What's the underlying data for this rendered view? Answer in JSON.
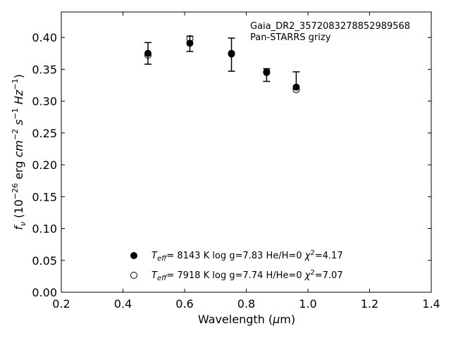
{
  "chart_data": {
    "type": "scatter",
    "xlabel": "Wavelength (μm)",
    "xlabel_parts": {
      "pre": "Wavelength (",
      "mu": "μ",
      "post": "m)"
    },
    "ylabel": "f_ν (10^-26 erg cm^-2 s^-1 Hz^-1)",
    "xlim": [
      0.2,
      1.4
    ],
    "ylim": [
      0.0,
      0.44
    ],
    "xticks": [
      0.2,
      0.4,
      0.6,
      0.8,
      1.0,
      1.2,
      1.4
    ],
    "xtick_labels": [
      "0.2",
      "0.4",
      "0.6",
      "0.8",
      "1.0",
      "1.2",
      "1.4"
    ],
    "yticks": [
      0.0,
      0.05,
      0.1,
      0.15,
      0.2,
      0.25,
      0.3,
      0.35,
      0.4
    ],
    "ytick_labels": [
      "0.00",
      "0.05",
      "0.10",
      "0.15",
      "0.20",
      "0.25",
      "0.30",
      "0.35",
      "0.40"
    ],
    "grid": false,
    "annotations": [
      "Gaia_DR2_3572083278852989568",
      "Pan-STARRS grizy"
    ],
    "observed": {
      "x": [
        0.481,
        0.617,
        0.752,
        0.866,
        0.962
      ],
      "y": [
        0.375,
        0.39,
        0.373,
        0.341,
        0.333
      ],
      "yerr": [
        0.017,
        0.012,
        0.026,
        0.01,
        0.013
      ],
      "marker": "errorbar-cap"
    },
    "series": [
      {
        "label_parts": {
          "teff": "8143 K",
          "logg": "log g=7.83",
          "comp": "He/H=0",
          "chi2": "=4.17"
        },
        "marker": "filled-circle",
        "x": [
          0.481,
          0.617,
          0.752,
          0.866,
          0.962
        ],
        "y": [
          0.375,
          0.391,
          0.374,
          0.345,
          0.322
        ]
      },
      {
        "label_parts": {
          "teff": "7918 K",
          "logg": "log g=7.74",
          "comp": "H/He=0",
          "chi2": "=7.07"
        },
        "marker": "open-circle",
        "x": [
          0.481,
          0.617,
          0.752,
          0.866,
          0.962
        ],
        "y": [
          0.372,
          0.398,
          0.375,
          0.346,
          0.318
        ]
      }
    ]
  }
}
